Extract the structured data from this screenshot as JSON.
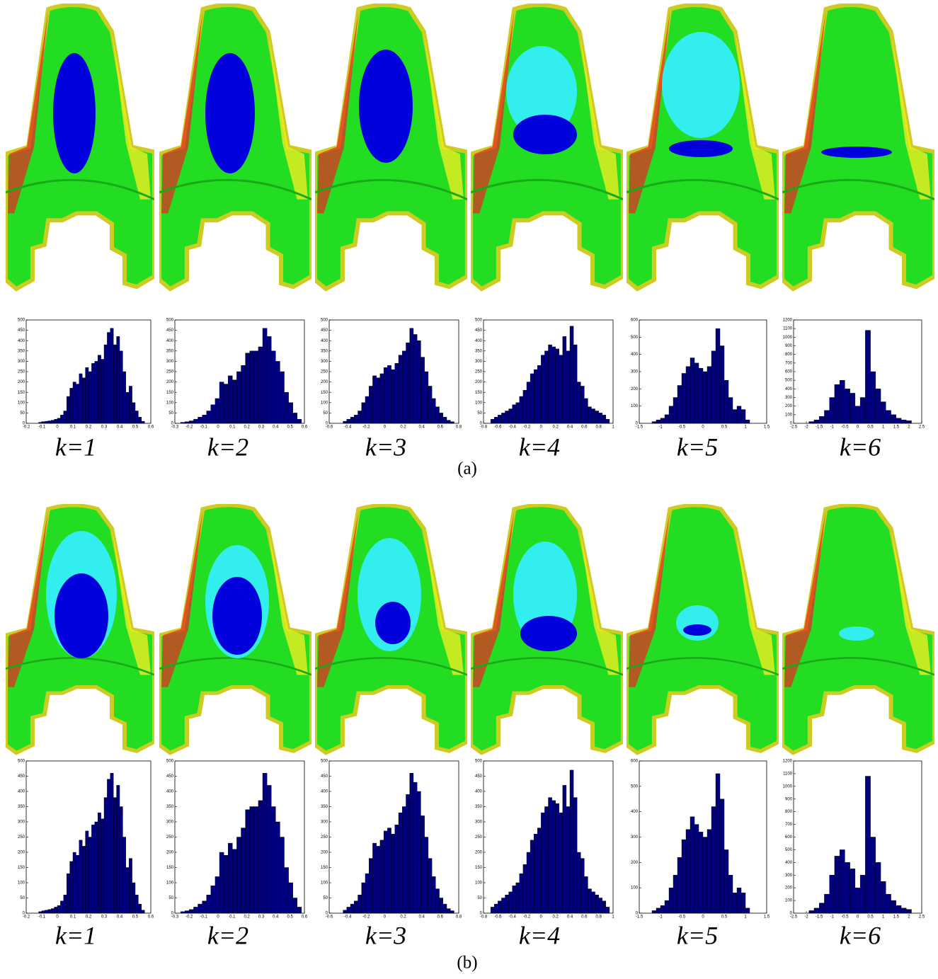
{
  "chart_data": [
    {
      "type": "histogram",
      "color": "#00007f",
      "bins": [
        -0.12,
        -0.1,
        -0.08,
        -0.06,
        -0.04,
        -0.02,
        0,
        0.02,
        0.04,
        0.06,
        0.08,
        0.1,
        0.12,
        0.14,
        0.16,
        0.18,
        0.2,
        0.22,
        0.24,
        0.26,
        0.28,
        0.3,
        0.32,
        0.34,
        0.36,
        0.38,
        0.4,
        0.42,
        0.44,
        0.46,
        0.48,
        0.5,
        0.52,
        0.54,
        0.56
      ],
      "values": [
        5,
        8,
        10,
        12,
        15,
        20,
        25,
        40,
        60,
        130,
        170,
        200,
        190,
        240,
        220,
        270,
        250,
        290,
        300,
        330,
        310,
        380,
        440,
        460,
        380,
        420,
        350,
        250,
        150,
        180,
        100,
        60,
        30,
        10
      ],
      "xlim": [
        -0.2,
        0.6
      ],
      "xticks": [
        -0.2,
        -0.1,
        0,
        0.1,
        0.2,
        0.3,
        0.4,
        0.5,
        0.6
      ],
      "ylim": [
        0,
        500
      ],
      "yticks": [
        0,
        50,
        100,
        150,
        200,
        250,
        300,
        350,
        400,
        450,
        500
      ]
    },
    {
      "type": "histogram",
      "color": "#00007f",
      "bins": [
        -0.26,
        -0.23,
        -0.2,
        -0.17,
        -0.14,
        -0.11,
        -0.08,
        -0.05,
        -0.02,
        0.01,
        0.04,
        0.07,
        0.1,
        0.13,
        0.16,
        0.19,
        0.22,
        0.25,
        0.28,
        0.31,
        0.34,
        0.37,
        0.4,
        0.43,
        0.46,
        0.49,
        0.52,
        0.55,
        0.58
      ],
      "values": [
        5,
        8,
        12,
        20,
        30,
        40,
        60,
        90,
        120,
        200,
        190,
        230,
        210,
        250,
        280,
        340,
        350,
        350,
        370,
        460,
        420,
        350,
        300,
        250,
        150,
        100,
        50,
        20
      ],
      "xlim": [
        -0.3,
        0.6
      ],
      "xticks": [
        -0.3,
        -0.2,
        -0.1,
        0,
        0.1,
        0.2,
        0.3,
        0.4,
        0.5,
        0.6
      ],
      "ylim": [
        0,
        500
      ],
      "yticks": [
        0,
        50,
        100,
        150,
        200,
        250,
        300,
        350,
        400,
        450,
        500
      ]
    },
    {
      "type": "histogram",
      "color": "#00007f",
      "bins": [
        -0.45,
        -0.41,
        -0.37,
        -0.33,
        -0.29,
        -0.25,
        -0.21,
        -0.17,
        -0.13,
        -0.09,
        -0.05,
        -0.01,
        0.03,
        0.07,
        0.11,
        0.15,
        0.19,
        0.23,
        0.27,
        0.31,
        0.35,
        0.39,
        0.43,
        0.47,
        0.51,
        0.55,
        0.59,
        0.63,
        0.67,
        0.71,
        0.75
      ],
      "values": [
        10,
        20,
        30,
        40,
        60,
        100,
        130,
        180,
        230,
        220,
        240,
        270,
        280,
        260,
        290,
        330,
        350,
        390,
        460,
        430,
        400,
        320,
        250,
        180,
        120,
        80,
        50,
        30,
        15,
        8
      ],
      "xlim": [
        -0.6,
        0.8
      ],
      "xticks": [
        -0.6,
        -0.4,
        -0.2,
        0,
        0.2,
        0.4,
        0.6,
        0.8
      ],
      "ylim": [
        0,
        500
      ],
      "yticks": [
        0,
        50,
        100,
        150,
        200,
        250,
        300,
        350,
        400,
        450,
        500
      ]
    },
    {
      "type": "histogram",
      "color": "#00007f",
      "bins": [
        -0.7,
        -0.65,
        -0.6,
        -0.55,
        -0.5,
        -0.45,
        -0.4,
        -0.35,
        -0.3,
        -0.25,
        -0.2,
        -0.15,
        -0.1,
        -0.05,
        0,
        0.05,
        0.1,
        0.15,
        0.2,
        0.25,
        0.3,
        0.35,
        0.4,
        0.45,
        0.5,
        0.55,
        0.6,
        0.65,
        0.7,
        0.75,
        0.8,
        0.85,
        0.9,
        0.95
      ],
      "values": [
        20,
        30,
        40,
        50,
        60,
        70,
        90,
        100,
        130,
        160,
        200,
        240,
        260,
        280,
        330,
        350,
        380,
        370,
        360,
        330,
        420,
        350,
        470,
        380,
        200,
        180,
        120,
        80,
        70,
        60,
        50,
        40,
        20
      ],
      "xlim": [
        -0.8,
        1
      ],
      "xticks": [
        -0.8,
        -0.6,
        -0.4,
        -0.2,
        0,
        0.2,
        0.4,
        0.6,
        0.8,
        1
      ],
      "ylim": [
        0,
        500
      ],
      "yticks": [
        0,
        50,
        100,
        150,
        200,
        250,
        300,
        350,
        400,
        450,
        500
      ]
    },
    {
      "type": "histogram",
      "color": "#00007f",
      "bins": [
        -1.2,
        -1.1,
        -1,
        -0.9,
        -0.8,
        -0.7,
        -0.6,
        -0.5,
        -0.4,
        -0.3,
        -0.2,
        -0.1,
        0,
        0.1,
        0.2,
        0.3,
        0.4,
        0.5,
        0.6,
        0.7,
        0.8,
        0.9,
        1,
        1.1
      ],
      "values": [
        10,
        20,
        30,
        50,
        100,
        150,
        220,
        290,
        330,
        380,
        350,
        320,
        300,
        330,
        420,
        550,
        450,
        250,
        150,
        80,
        100,
        80,
        20
      ],
      "xlim": [
        -1.5,
        1.5
      ],
      "xticks": [
        -1.5,
        -1,
        -0.5,
        0,
        0.5,
        1,
        1.5
      ],
      "ylim": [
        0,
        600
      ],
      "yticks": [
        0,
        100,
        200,
        300,
        400,
        500,
        600
      ]
    },
    {
      "type": "histogram",
      "color": "#00007f",
      "bins": [
        -1.9,
        -1.7,
        -1.5,
        -1.3,
        -1.1,
        -0.9,
        -0.7,
        -0.5,
        -0.3,
        -0.1,
        0.1,
        0.3,
        0.5,
        0.7,
        0.9,
        1.1,
        1.3,
        1.5,
        1.7,
        1.9,
        2.1
      ],
      "values": [
        20,
        40,
        80,
        150,
        300,
        450,
        500,
        400,
        350,
        200,
        300,
        1080,
        600,
        400,
        250,
        150,
        100,
        60,
        40,
        30
      ],
      "xlim": [
        -2.5,
        2.5
      ],
      "xticks": [
        -2.5,
        -2,
        -1.5,
        -1,
        -0.5,
        0,
        0.5,
        1,
        1.5,
        2,
        2.5
      ],
      "ylim": [
        0,
        1200
      ],
      "yticks": [
        0,
        100,
        200,
        300,
        400,
        500,
        600,
        700,
        800,
        900,
        1000,
        1100,
        1200
      ]
    },
    {
      "type": "histogram",
      "color": "#00007f",
      "bins": [
        -0.12,
        -0.1,
        -0.08,
        -0.06,
        -0.04,
        -0.02,
        0,
        0.02,
        0.04,
        0.06,
        0.08,
        0.1,
        0.12,
        0.14,
        0.16,
        0.18,
        0.2,
        0.22,
        0.24,
        0.26,
        0.28,
        0.3,
        0.32,
        0.34,
        0.36,
        0.38,
        0.4,
        0.42,
        0.44,
        0.46,
        0.48,
        0.5,
        0.52,
        0.54,
        0.56
      ],
      "values": [
        5,
        8,
        10,
        12,
        15,
        20,
        25,
        40,
        60,
        130,
        170,
        200,
        190,
        240,
        220,
        270,
        250,
        290,
        300,
        330,
        310,
        380,
        440,
        460,
        380,
        420,
        350,
        250,
        150,
        180,
        100,
        60,
        30,
        10
      ],
      "xlim": [
        -0.2,
        0.6
      ],
      "xticks": [
        -0.2,
        -0.1,
        0,
        0.1,
        0.2,
        0.3,
        0.4,
        0.5,
        0.6
      ],
      "ylim": [
        0,
        500
      ],
      "yticks": [
        0,
        50,
        100,
        150,
        200,
        250,
        300,
        350,
        400,
        450,
        500
      ]
    },
    {
      "type": "histogram",
      "color": "#00007f",
      "bins": [
        -0.26,
        -0.23,
        -0.2,
        -0.17,
        -0.14,
        -0.11,
        -0.08,
        -0.05,
        -0.02,
        0.01,
        0.04,
        0.07,
        0.1,
        0.13,
        0.16,
        0.19,
        0.22,
        0.25,
        0.28,
        0.31,
        0.34,
        0.37,
        0.4,
        0.43,
        0.46,
        0.49,
        0.52,
        0.55,
        0.58
      ],
      "values": [
        5,
        8,
        12,
        20,
        30,
        40,
        60,
        90,
        120,
        200,
        190,
        230,
        210,
        250,
        280,
        340,
        350,
        350,
        370,
        460,
        420,
        350,
        300,
        250,
        150,
        100,
        50,
        20
      ],
      "xlim": [
        -0.3,
        0.6
      ],
      "xticks": [
        -0.3,
        -0.2,
        -0.1,
        0,
        0.1,
        0.2,
        0.3,
        0.4,
        0.5,
        0.6
      ],
      "ylim": [
        0,
        500
      ],
      "yticks": [
        0,
        50,
        100,
        150,
        200,
        250,
        300,
        350,
        400,
        450,
        500
      ]
    },
    {
      "type": "histogram",
      "color": "#00007f",
      "bins": [
        -0.45,
        -0.41,
        -0.37,
        -0.33,
        -0.29,
        -0.25,
        -0.21,
        -0.17,
        -0.13,
        -0.09,
        -0.05,
        -0.01,
        0.03,
        0.07,
        0.11,
        0.15,
        0.19,
        0.23,
        0.27,
        0.31,
        0.35,
        0.39,
        0.43,
        0.47,
        0.51,
        0.55,
        0.59,
        0.63,
        0.67,
        0.71,
        0.75
      ],
      "values": [
        10,
        20,
        30,
        40,
        60,
        100,
        130,
        180,
        230,
        220,
        240,
        270,
        280,
        260,
        290,
        330,
        350,
        390,
        460,
        430,
        400,
        320,
        250,
        180,
        120,
        80,
        50,
        30,
        15,
        8
      ],
      "xlim": [
        -0.6,
        0.8
      ],
      "xticks": [
        -0.6,
        -0.4,
        -0.2,
        0,
        0.2,
        0.4,
        0.6,
        0.8
      ],
      "ylim": [
        0,
        500
      ],
      "yticks": [
        0,
        50,
        100,
        150,
        200,
        250,
        300,
        350,
        400,
        450,
        500
      ]
    },
    {
      "type": "histogram",
      "color": "#00007f",
      "bins": [
        -0.7,
        -0.65,
        -0.6,
        -0.55,
        -0.5,
        -0.45,
        -0.4,
        -0.35,
        -0.3,
        -0.25,
        -0.2,
        -0.15,
        -0.1,
        -0.05,
        0,
        0.05,
        0.1,
        0.15,
        0.2,
        0.25,
        0.3,
        0.35,
        0.4,
        0.45,
        0.5,
        0.55,
        0.6,
        0.65,
        0.7,
        0.75,
        0.8,
        0.85,
        0.9,
        0.95
      ],
      "values": [
        20,
        30,
        40,
        50,
        60,
        70,
        90,
        100,
        130,
        160,
        200,
        240,
        260,
        280,
        330,
        350,
        380,
        370,
        360,
        330,
        420,
        350,
        470,
        380,
        200,
        180,
        120,
        80,
        70,
        60,
        50,
        40,
        20
      ],
      "xlim": [
        -0.8,
        1
      ],
      "xticks": [
        -0.8,
        -0.6,
        -0.4,
        -0.2,
        0,
        0.2,
        0.4,
        0.6,
        0.8,
        1
      ],
      "ylim": [
        0,
        500
      ],
      "yticks": [
        0,
        50,
        100,
        150,
        200,
        250,
        300,
        350,
        400,
        450,
        500
      ]
    },
    {
      "type": "histogram",
      "color": "#00007f",
      "bins": [
        -1.2,
        -1.1,
        -1,
        -0.9,
        -0.8,
        -0.7,
        -0.6,
        -0.5,
        -0.4,
        -0.3,
        -0.2,
        -0.1,
        0,
        0.1,
        0.2,
        0.3,
        0.4,
        0.5,
        0.6,
        0.7,
        0.8,
        0.9,
        1,
        1.1
      ],
      "values": [
        10,
        20,
        30,
        50,
        100,
        150,
        220,
        290,
        330,
        380,
        350,
        320,
        300,
        330,
        420,
        550,
        450,
        250,
        150,
        80,
        100,
        80,
        20
      ],
      "xlim": [
        -1.5,
        1.5
      ],
      "xticks": [
        -1.5,
        -1,
        -0.5,
        0,
        0.5,
        1,
        1.5
      ],
      "ylim": [
        0,
        600
      ],
      "yticks": [
        0,
        100,
        200,
        300,
        400,
        500,
        600
      ]
    },
    {
      "type": "histogram",
      "color": "#00007f",
      "bins": [
        -1.9,
        -1.7,
        -1.5,
        -1.3,
        -1.1,
        -0.9,
        -0.7,
        -0.5,
        -0.3,
        -0.1,
        0.1,
        0.3,
        0.5,
        0.7,
        0.9,
        1.1,
        1.3,
        1.5,
        1.7,
        1.9,
        2.1
      ],
      "values": [
        20,
        40,
        80,
        150,
        300,
        450,
        500,
        400,
        350,
        200,
        300,
        1080,
        600,
        400,
        250,
        150,
        100,
        60,
        40,
        30
      ],
      "xlim": [
        -2.5,
        2.5
      ],
      "xticks": [
        -2.5,
        -2,
        -1.5,
        -1,
        -0.5,
        0,
        0.5,
        1,
        1.5,
        2,
        2.5
      ],
      "ylim": [
        0,
        1200
      ],
      "yticks": [
        0,
        100,
        200,
        300,
        400,
        500,
        600,
        700,
        800,
        900,
        1000,
        1100,
        1200
      ]
    }
  ],
  "figure": {
    "rows": [
      {
        "labels": [
          "k=1",
          "k=2",
          "k=3",
          "k=4",
          "k=5",
          "k=6"
        ],
        "caption": "(a)"
      },
      {
        "labels": [
          "k=1",
          "k=2",
          "k=3",
          "k=4",
          "k=5",
          "k=6"
        ],
        "caption": "(b)"
      }
    ]
  }
}
